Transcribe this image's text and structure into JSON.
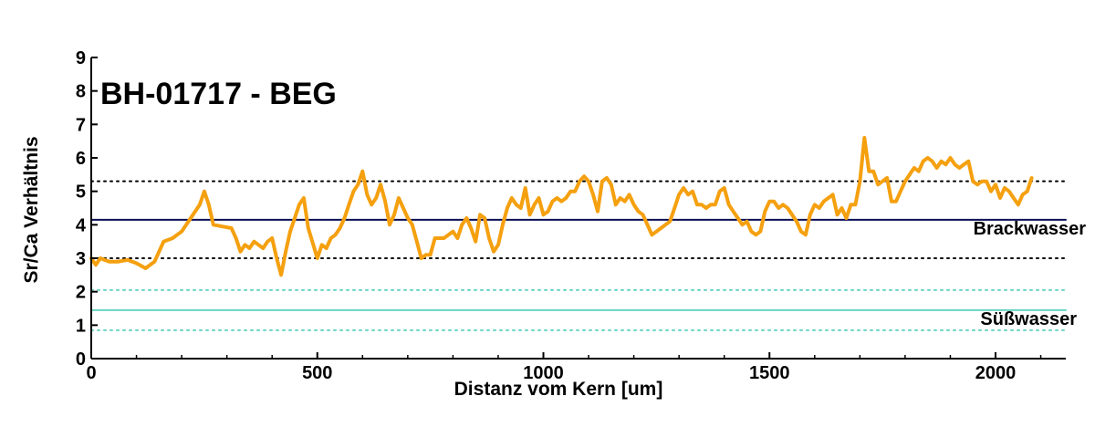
{
  "chart_data": {
    "type": "line",
    "title": "BH-01717 - BEG",
    "xlabel": "Distanz vom Kern [um]",
    "ylabel": "Sr/Ca Verhältnis",
    "xlim": [
      0,
      2180
    ],
    "ylim": [
      0,
      9
    ],
    "xticks": [
      0,
      500,
      1000,
      1500,
      2000
    ],
    "yticks": [
      0,
      1,
      2,
      3,
      4,
      5,
      6,
      7,
      8,
      9
    ],
    "grid": false,
    "series": [
      {
        "color": "#f5a00f",
        "x": [
          0,
          10,
          20,
          40,
          60,
          80,
          100,
          120,
          140,
          160,
          180,
          200,
          220,
          240,
          250,
          260,
          270,
          290,
          310,
          320,
          330,
          340,
          350,
          360,
          370,
          380,
          390,
          400,
          410,
          420,
          430,
          440,
          450,
          460,
          470,
          480,
          500,
          510,
          520,
          530,
          540,
          550,
          560,
          570,
          580,
          590,
          600,
          610,
          620,
          630,
          640,
          650,
          660,
          670,
          680,
          690,
          700,
          710,
          720,
          730,
          740,
          750,
          760,
          780,
          800,
          810,
          820,
          830,
          840,
          850,
          860,
          870,
          880,
          890,
          900,
          910,
          920,
          930,
          940,
          950,
          960,
          970,
          980,
          990,
          1000,
          1010,
          1020,
          1030,
          1040,
          1050,
          1060,
          1070,
          1080,
          1090,
          1100,
          1110,
          1120,
          1130,
          1140,
          1150,
          1160,
          1170,
          1180,
          1190,
          1200,
          1210,
          1220,
          1230,
          1240,
          1250,
          1260,
          1270,
          1280,
          1290,
          1300,
          1310,
          1320,
          1330,
          1340,
          1350,
          1360,
          1370,
          1380,
          1390,
          1400,
          1410,
          1420,
          1430,
          1440,
          1450,
          1460,
          1470,
          1480,
          1490,
          1500,
          1510,
          1520,
          1530,
          1540,
          1550,
          1560,
          1570,
          1580,
          1590,
          1600,
          1610,
          1620,
          1630,
          1640,
          1650,
          1660,
          1670,
          1680,
          1690,
          1700,
          1710,
          1720,
          1730,
          1740,
          1750,
          1760,
          1770,
          1780,
          1790,
          1800,
          1810,
          1820,
          1830,
          1840,
          1850,
          1860,
          1870,
          1880,
          1890,
          1900,
          1910,
          1920,
          1930,
          1940,
          1950,
          1960,
          1970,
          1980,
          1990,
          2000,
          2010,
          2020,
          2030,
          2040,
          2050,
          2060,
          2070,
          2080
        ],
        "y": [
          3.0,
          2.8,
          3.0,
          2.9,
          2.9,
          2.95,
          2.85,
          2.7,
          2.9,
          3.5,
          3.6,
          3.8,
          4.2,
          4.6,
          5.0,
          4.6,
          4.0,
          3.95,
          3.9,
          3.6,
          3.2,
          3.4,
          3.3,
          3.5,
          3.4,
          3.3,
          3.5,
          3.6,
          3.0,
          2.5,
          3.2,
          3.8,
          4.2,
          4.6,
          4.8,
          3.9,
          3.0,
          3.4,
          3.3,
          3.6,
          3.7,
          3.9,
          4.2,
          4.6,
          5.0,
          5.2,
          5.6,
          4.9,
          4.6,
          4.8,
          5.2,
          4.7,
          4.0,
          4.3,
          4.8,
          4.5,
          4.2,
          4.0,
          3.5,
          3.0,
          3.1,
          3.1,
          3.6,
          3.6,
          3.8,
          3.6,
          4.0,
          4.2,
          3.9,
          3.5,
          4.3,
          4.2,
          3.6,
          3.2,
          3.4,
          4.0,
          4.5,
          4.8,
          4.6,
          4.5,
          5.1,
          4.3,
          4.6,
          4.8,
          4.3,
          4.4,
          4.7,
          4.8,
          4.7,
          4.8,
          5.0,
          5.0,
          5.3,
          5.45,
          5.3,
          4.9,
          4.4,
          5.3,
          5.4,
          5.2,
          4.6,
          4.8,
          4.7,
          4.9,
          4.6,
          4.4,
          4.3,
          4.0,
          3.7,
          3.8,
          3.9,
          4.0,
          4.1,
          4.5,
          4.9,
          5.1,
          4.9,
          5.0,
          4.6,
          4.6,
          4.5,
          4.6,
          4.6,
          5.0,
          5.1,
          4.6,
          4.4,
          4.2,
          4.0,
          4.1,
          3.8,
          3.7,
          3.8,
          4.4,
          4.7,
          4.7,
          4.5,
          4.6,
          4.5,
          4.3,
          4.1,
          3.8,
          3.7,
          4.3,
          4.6,
          4.5,
          4.7,
          4.8,
          4.9,
          4.3,
          4.5,
          4.2,
          4.6,
          4.6,
          5.3,
          6.6,
          5.6,
          5.6,
          5.2,
          5.3,
          5.4,
          4.7,
          4.7,
          5.0,
          5.3,
          5.5,
          5.7,
          5.6,
          5.9,
          6.0,
          5.9,
          5.7,
          5.9,
          5.8,
          6.0,
          5.8,
          5.7,
          5.8,
          5.9,
          5.3,
          5.2,
          5.3,
          5.3,
          5.0,
          5.2,
          4.8,
          5.1,
          5.0,
          4.8,
          4.6,
          4.9,
          5.0,
          5.4
        ]
      }
    ],
    "reference_lines": [
      {
        "y": 5.3,
        "style": "dotted",
        "color": "#000000"
      },
      {
        "y": 4.15,
        "style": "solid",
        "color": "#0a0f55"
      },
      {
        "y": 3.0,
        "style": "dotted",
        "color": "#000000"
      },
      {
        "y": 2.05,
        "style": "dotted",
        "color": "#66d4c3"
      },
      {
        "y": 1.45,
        "style": "solid",
        "color": "#66d4c3"
      },
      {
        "y": 0.85,
        "style": "dotted",
        "color": "#66d4c3"
      }
    ],
    "annotations": [
      {
        "text": "Brackwasser",
        "y": 3.9
      },
      {
        "text": "Süßwasser",
        "y": 1.2
      }
    ]
  }
}
